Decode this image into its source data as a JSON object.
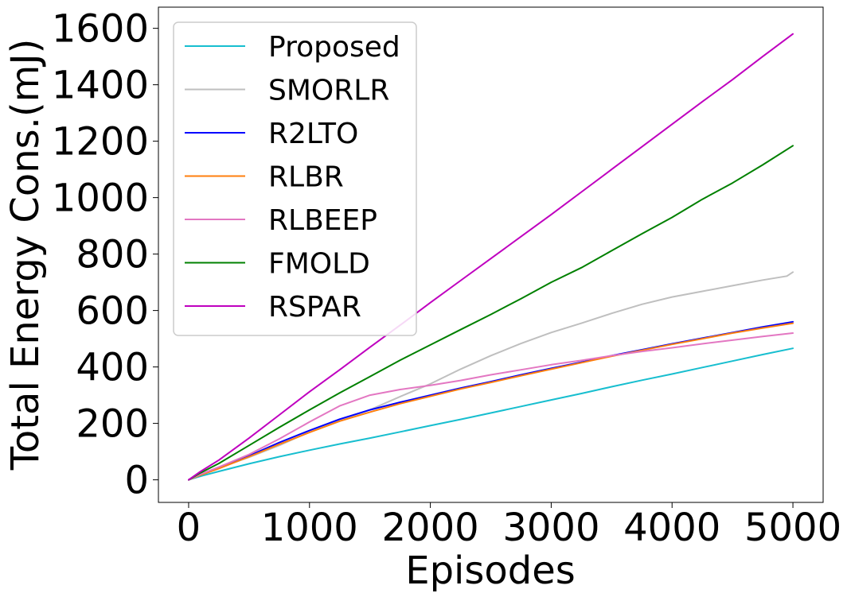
{
  "chart_data": {
    "type": "line",
    "xlabel": "Episodes",
    "ylabel": "Total Energy Cons.(mJ)",
    "xlim": [
      -250,
      5250
    ],
    "ylim": [
      -80,
      1675
    ],
    "xticks": [
      0,
      1000,
      2000,
      3000,
      4000,
      5000
    ],
    "yticks": [
      0,
      200,
      400,
      600,
      800,
      1000,
      1200,
      1400,
      1600
    ],
    "grid": false,
    "legend_position": "top-left",
    "series": [
      {
        "name": "Proposed",
        "color": "#17becf",
        "x": [
          0,
          100,
          250,
          500,
          750,
          1000,
          1250,
          1500,
          1750,
          2000,
          2250,
          2500,
          2750,
          3000,
          3250,
          3500,
          3750,
          4000,
          4250,
          4500,
          4750,
          5000
        ],
        "y": [
          0,
          13,
          30,
          57,
          82,
          105,
          127,
          148,
          170,
          192,
          214,
          237,
          260,
          283,
          306,
          330,
          353,
          375,
          398,
          421,
          444,
          466
        ]
      },
      {
        "name": "SMORLR",
        "color": "#bfbfbf",
        "x": [
          0,
          100,
          250,
          500,
          750,
          1000,
          1250,
          1500,
          1750,
          2000,
          2250,
          2500,
          2750,
          3000,
          3250,
          3500,
          3750,
          4000,
          4250,
          4500,
          4750,
          4950,
          5000
        ],
        "y": [
          0,
          18,
          42,
          80,
          122,
          170,
          210,
          248,
          295,
          340,
          392,
          440,
          483,
          522,
          555,
          590,
          622,
          648,
          668,
          688,
          708,
          722,
          736
        ]
      },
      {
        "name": "R2LTO",
        "color": "#0000ff",
        "x": [
          0,
          100,
          250,
          500,
          750,
          1000,
          1250,
          1500,
          1750,
          2000,
          2250,
          2500,
          2750,
          3000,
          3250,
          3500,
          3750,
          4000,
          4250,
          4500,
          4750,
          5000
        ],
        "y": [
          0,
          18,
          42,
          85,
          132,
          175,
          215,
          248,
          275,
          300,
          325,
          348,
          372,
          395,
          417,
          440,
          461,
          482,
          502,
          522,
          542,
          560
        ]
      },
      {
        "name": "RLBR",
        "color": "#ff7f0e",
        "x": [
          0,
          100,
          250,
          500,
          750,
          1000,
          1250,
          1500,
          1750,
          2000,
          2250,
          2500,
          2750,
          3000,
          3250,
          3500,
          3750,
          4000,
          4250,
          4500,
          4750,
          5000
        ],
        "y": [
          0,
          17,
          40,
          82,
          126,
          168,
          208,
          240,
          270,
          296,
          322,
          345,
          369,
          392,
          415,
          438,
          459,
          480,
          500,
          520,
          538,
          555
        ]
      },
      {
        "name": "RLBEEP",
        "color": "#e377c2",
        "x": [
          0,
          100,
          250,
          500,
          750,
          1000,
          1250,
          1500,
          1750,
          2000,
          2250,
          2500,
          2750,
          3000,
          3250,
          3500,
          3750,
          4000,
          4250,
          4500,
          4750,
          5000
        ],
        "y": [
          0,
          20,
          45,
          90,
          145,
          205,
          262,
          300,
          320,
          335,
          352,
          372,
          390,
          408,
          423,
          440,
          455,
          468,
          482,
          495,
          508,
          520
        ]
      },
      {
        "name": "FMOLD",
        "color": "#008000",
        "x": [
          0,
          100,
          250,
          500,
          750,
          1000,
          1250,
          1500,
          1750,
          2000,
          2250,
          2500,
          2750,
          3000,
          3250,
          3500,
          3750,
          4000,
          4250,
          4500,
          4750,
          5000
        ],
        "y": [
          0,
          25,
          58,
          122,
          186,
          248,
          308,
          366,
          424,
          478,
          532,
          586,
          642,
          700,
          752,
          812,
          872,
          930,
          994,
          1052,
          1116,
          1184
        ]
      },
      {
        "name": "RSPAR",
        "color": "#bf00bf",
        "x": [
          0,
          100,
          250,
          500,
          750,
          1000,
          1250,
          1500,
          1750,
          2000,
          2250,
          2500,
          2750,
          3000,
          3250,
          3500,
          3750,
          4000,
          4250,
          4500,
          4750,
          5000
        ],
        "y": [
          0,
          30,
          70,
          148,
          230,
          312,
          390,
          470,
          548,
          628,
          706,
          784,
          862,
          940,
          1020,
          1100,
          1180,
          1260,
          1340,
          1418,
          1500,
          1580
        ]
      }
    ]
  }
}
